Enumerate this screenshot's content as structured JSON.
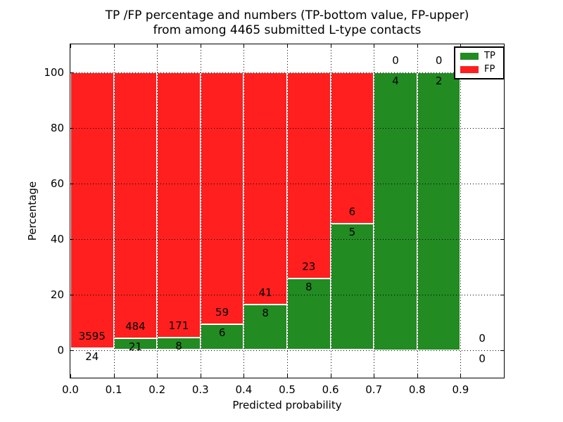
{
  "title": {
    "line1": "TP /FP percentage and numbers (TP-bottom value, FP-upper)",
    "line2": "from among 4465 submitted L-type contacts"
  },
  "chart_data": {
    "type": "bar",
    "subtype": "stacked-percentage",
    "title": "TP /FP percentage and numbers (TP-bottom value, FP-upper) from among 4465 submitted L-type contacts",
    "xlabel": "Predicted probability",
    "ylabel": "Percentage",
    "xlim": [
      0.0,
      1.0
    ],
    "ylim": [
      -10,
      110
    ],
    "grid": true,
    "x_ticks": [
      "0.0",
      "0.1",
      "0.2",
      "0.3",
      "0.4",
      "0.5",
      "0.6",
      "0.7",
      "0.8",
      "0.9"
    ],
    "y_ticks": [
      "0",
      "20",
      "40",
      "60",
      "80",
      "100"
    ],
    "bin_width": 0.1,
    "bin_starts": [
      0.0,
      0.1,
      0.2,
      0.3,
      0.4,
      0.5,
      0.6,
      0.7,
      0.8,
      0.9
    ],
    "series": [
      {
        "name": "TP",
        "color": "#228b22",
        "values": [
          24,
          21,
          8,
          6,
          8,
          8,
          5,
          4,
          2,
          0
        ]
      },
      {
        "name": "FP",
        "color": "#ff1f1f",
        "values": [
          3595,
          484,
          171,
          59,
          41,
          23,
          6,
          0,
          0,
          0
        ]
      }
    ],
    "total_submitted": 4465,
    "legend": {
      "position": "upper right",
      "entries": [
        {
          "label": "TP",
          "color": "#228b22"
        },
        {
          "label": "FP",
          "color": "#ff1f1f"
        }
      ]
    }
  }
}
